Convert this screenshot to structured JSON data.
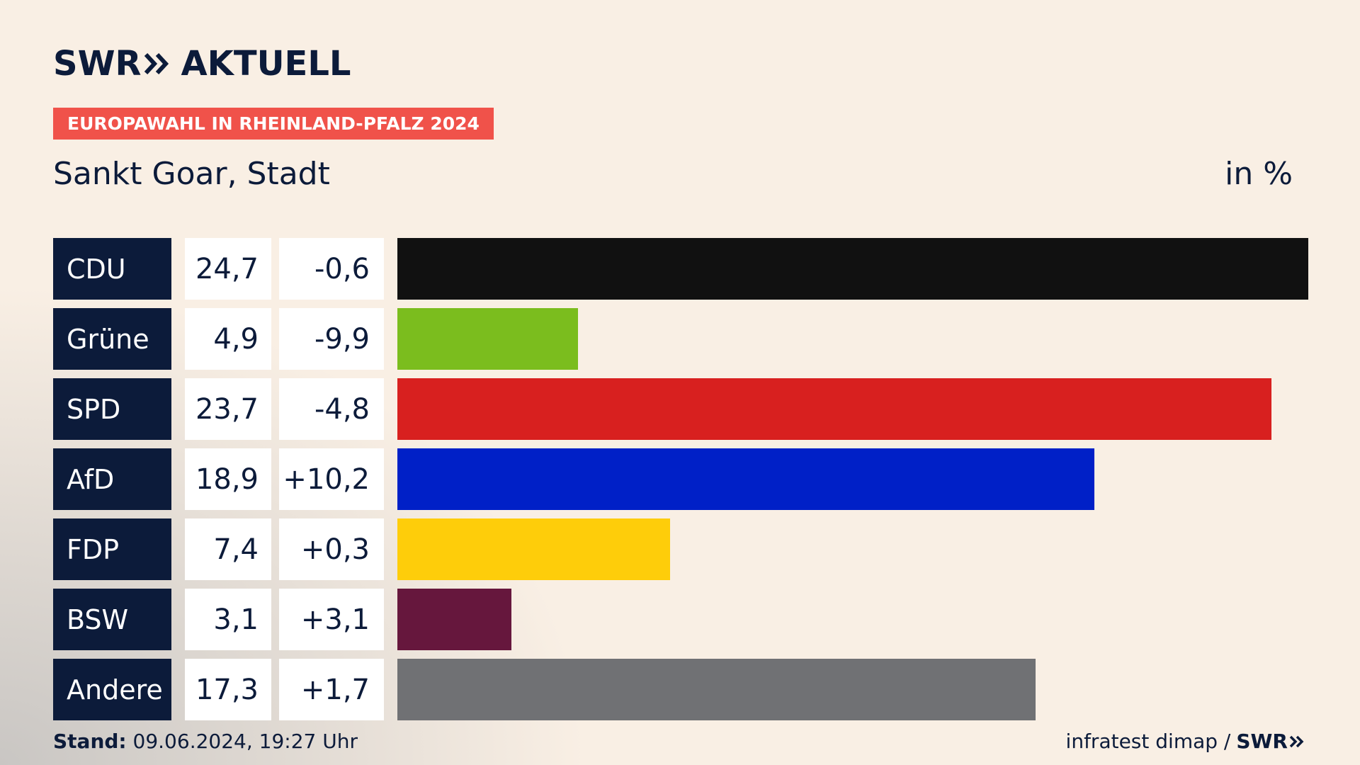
{
  "brand": {
    "name": "SWR",
    "section": "AKTUELL",
    "small_logo": "SWR"
  },
  "badge": "EUROPAWAHL IN RHEINLAND-PFALZ 2024",
  "location": "Sankt Goar, Stadt",
  "unit": "in %",
  "chart_data": {
    "type": "bar",
    "orientation": "horizontal",
    "title": "Sankt Goar, Stadt",
    "unit": "in %",
    "xlim": [
      0,
      24.7
    ],
    "categories": [
      "CDU",
      "Grüne",
      "SPD",
      "AfD",
      "FDP",
      "BSW",
      "Andere"
    ],
    "values": [
      24.7,
      4.9,
      23.7,
      18.9,
      7.4,
      3.1,
      17.3
    ],
    "value_labels": [
      "24,7",
      "4,9",
      "23,7",
      "18,9",
      "7,4",
      "3,1",
      "17,3"
    ],
    "diff_labels": [
      "-0,6",
      "-9,9",
      "-4,8",
      "+10,2",
      "+0,3",
      "+3,1",
      "+1,7"
    ],
    "colors": [
      "#111111",
      "#7bbd1e",
      "#d8201f",
      "#0020c7",
      "#fecd0a",
      "#66173d",
      "#707174"
    ]
  },
  "footer": {
    "stand_label": "Stand:",
    "stand_value": "09.06.2024, 19:27 Uhr",
    "source": "infratest dimap /"
  }
}
